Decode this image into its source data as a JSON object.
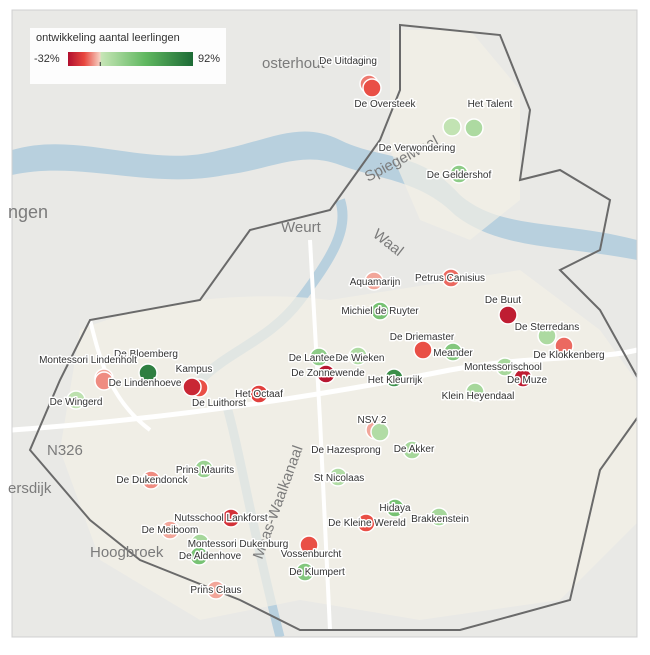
{
  "legend": {
    "title": "ontwikkeling aantal leerlingen",
    "min": {
      "value": -32,
      "label": "-32%"
    },
    "max": {
      "value": 92,
      "label": "92%"
    }
  },
  "schools": [
    {
      "name": "De Uitdaging",
      "value": -10
    },
    {
      "name": "De Oversteek",
      "value": -15
    },
    {
      "name": "Het Talent",
      "value": 12
    },
    {
      "name": "De Verwondering",
      "value": 3
    },
    {
      "name": "De Geldershof",
      "value": 25
    },
    {
      "name": "Aquamarijn",
      "value": -5
    },
    {
      "name": "Petrus Canisius",
      "value": -12
    },
    {
      "name": "De Buut",
      "value": -28
    },
    {
      "name": "De Sterredans",
      "value": 12
    },
    {
      "name": "De Klokkenberg",
      "value": -12
    },
    {
      "name": "Michiel de Ruyter",
      "value": 35
    },
    {
      "name": "De Driemaster",
      "value": -15
    },
    {
      "name": "Meander",
      "value": 30
    },
    {
      "name": "Montessorischool",
      "value": 15
    },
    {
      "name": "De Muze",
      "value": -28
    },
    {
      "name": "De Lanteerne",
      "value": 25
    },
    {
      "name": "De Wieken",
      "value": 12
    },
    {
      "name": "De Zonnewende",
      "value": -30
    },
    {
      "name": "Het Kleurrijk",
      "value": 70
    },
    {
      "name": "Klein Heyendaal",
      "value": 15
    },
    {
      "name": "NSV 2",
      "value": -5
    },
    {
      "name": "De Hazesprong",
      "value": 10
    },
    {
      "name": "De Akker",
      "value": 15
    },
    {
      "name": "St Nicolaas",
      "value": 10
    },
    {
      "name": "Hidaya",
      "value": 35
    },
    {
      "name": "Brakkenstein",
      "value": 15
    },
    {
      "name": "De Kleine Wereld",
      "value": -15
    },
    {
      "name": "Vossenburcht",
      "value": -15
    },
    {
      "name": "De Klumpert",
      "value": 30
    },
    {
      "name": "Prins Maurits",
      "value": 20
    },
    {
      "name": "De Dukendonck",
      "value": -8
    },
    {
      "name": "Nutsschool Lankforst",
      "value": -22
    },
    {
      "name": "De Meiboom",
      "value": -5
    },
    {
      "name": "Montessori Dukenburg",
      "value": 15
    },
    {
      "name": "De Aldenhove",
      "value": 35
    },
    {
      "name": "Prins Claus",
      "value": -5
    },
    {
      "name": "Het Octaaf",
      "value": -18
    },
    {
      "name": "Kampus",
      "value": -15
    },
    {
      "name": "De Luithorst",
      "value": -25
    },
    {
      "name": "De Bloemberg",
      "value": 80
    },
    {
      "name": "Montessori Lindenholt",
      "value": -5
    },
    {
      "name": "De Lindenhoeve",
      "value": -8
    },
    {
      "name": "De Wingerd",
      "value": 5
    }
  ],
  "map_labels": [
    "osterhout",
    "ngen",
    "Weurt",
    "Spiegelwaal",
    "Waal",
    "N326",
    "ersdijk",
    "Hoogbroek",
    "Maas-Waalkanaal"
  ]
}
